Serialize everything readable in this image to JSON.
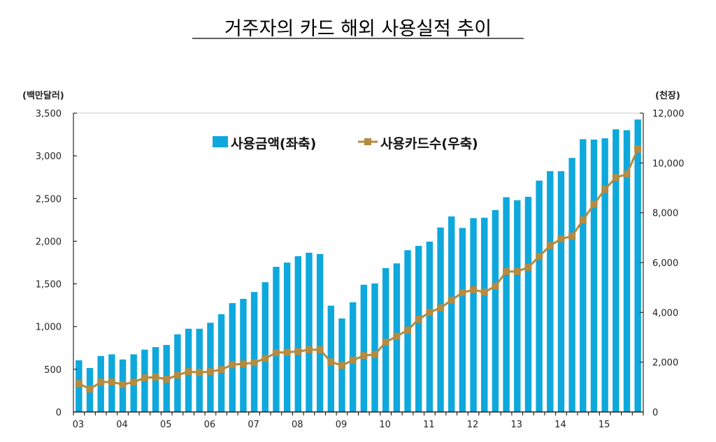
{
  "chart_data": {
    "type": "bar+line",
    "title": "거주자의 카드 해외 사용실적 추이",
    "y_left_unit": "(백만달러)",
    "y_right_unit": "(천장)",
    "ylim_left": [
      0,
      3500
    ],
    "ylim_right": [
      0,
      12000
    ],
    "y_left_ticks": [
      "0",
      "500",
      "1,000",
      "1,500",
      "2,000",
      "2,500",
      "3,000",
      "3,500"
    ],
    "y_right_ticks": [
      "0",
      "2,000",
      "4,000",
      "6,000",
      "8,000",
      "10,000",
      "12,000"
    ],
    "x_tick_labels": [
      "03",
      "04",
      "05",
      "06",
      "07",
      "08",
      "09",
      "10",
      "11",
      "12",
      "13",
      "14",
      "15"
    ],
    "x_period": "quarterly 2003Q1-2015Q4",
    "grid": false,
    "legend_placement": "top-center",
    "series": [
      {
        "name": "사용금액(좌축)",
        "type": "bar",
        "axis": "left",
        "color": "#0ea8dc",
        "values": [
          605,
          515,
          655,
          675,
          615,
          675,
          730,
          760,
          785,
          910,
          975,
          975,
          1045,
          1145,
          1275,
          1325,
          1405,
          1520,
          1700,
          1750,
          1825,
          1865,
          1850,
          1245,
          1095,
          1285,
          1490,
          1505,
          1685,
          1740,
          1895,
          1945,
          1995,
          2160,
          2290,
          2155,
          2270,
          2275,
          2365,
          2515,
          2480,
          2520,
          2710,
          2820,
          2820,
          2975,
          3195,
          3190,
          3205,
          3310,
          3300,
          3425
        ]
      },
      {
        "name": "사용카드수(우축)",
        "type": "line",
        "axis": "right",
        "color": "#b38b42",
        "marker": "square",
        "values": [
          1140,
          920,
          1200,
          1210,
          1100,
          1200,
          1370,
          1400,
          1310,
          1480,
          1620,
          1590,
          1620,
          1700,
          1900,
          1930,
          1980,
          2150,
          2380,
          2400,
          2430,
          2500,
          2500,
          2010,
          1870,
          2080,
          2260,
          2310,
          2800,
          3040,
          3290,
          3720,
          4000,
          4180,
          4490,
          4790,
          4910,
          4810,
          5050,
          5640,
          5640,
          5810,
          6240,
          6680,
          6950,
          7060,
          7710,
          8340,
          8940,
          9410,
          9550,
          10560
        ]
      }
    ]
  }
}
